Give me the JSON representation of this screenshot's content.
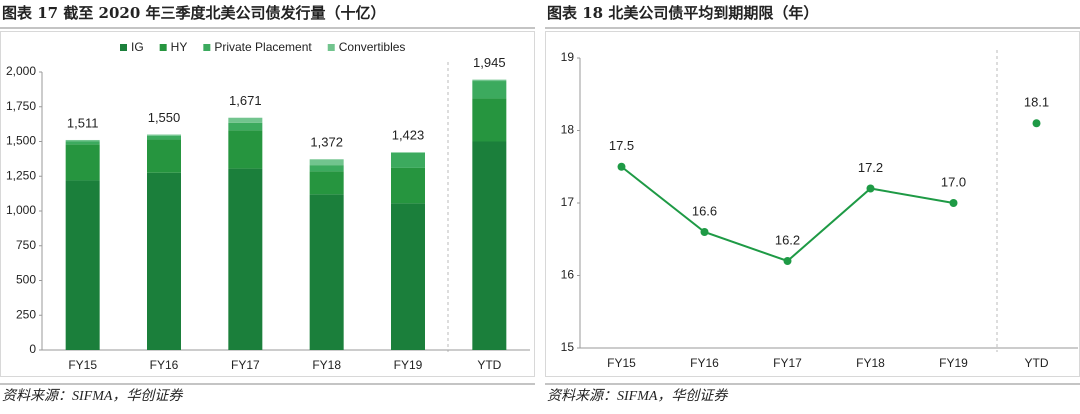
{
  "chart_data": [
    {
      "type": "bar",
      "stacked": true,
      "title": "图表 17   截至 2020 年三季度北美公司债发行量（十亿）",
      "source": "资料来源：SIFMA，华创证券",
      "categories": [
        "FY15",
        "FY16",
        "FY17",
        "FY18",
        "FY19",
        "YTD"
      ],
      "series": [
        {
          "name": "IG",
          "color": "#1b7f3b",
          "values": [
            1220,
            1275,
            1305,
            1120,
            1055,
            1500
          ]
        },
        {
          "name": "HY",
          "color": "#26953f",
          "values": [
            260,
            240,
            275,
            165,
            255,
            310
          ]
        },
        {
          "name": "Private Placement",
          "color": "#3caa5e",
          "values": [
            20,
            25,
            55,
            45,
            108,
            125
          ]
        },
        {
          "name": "Convertibles",
          "color": "#72c48e",
          "values": [
            11,
            10,
            36,
            42,
            5,
            10
          ]
        }
      ],
      "totals": [
        1511,
        1550,
        1671,
        1372,
        1423,
        1945
      ],
      "total_labels": [
        "1,511",
        "1,550",
        "1,671",
        "1,372",
        "1,423",
        "1,945"
      ],
      "ylim": [
        0,
        2000
      ],
      "yticks": [
        0,
        250,
        500,
        750,
        {
          "value": 1000,
          "label": "1,000"
        },
        {
          "value": 1250,
          "label": "1,250"
        },
        {
          "value": 1500,
          "label": "1,500"
        },
        {
          "value": 1750,
          "label": "1,750"
        },
        {
          "value": 2000,
          "label": "2,000"
        }
      ],
      "legend": "top"
    },
    {
      "type": "line",
      "title": "图表 18   北美公司债平均到期期限（年）",
      "source": "资料来源：SIFMA，华创证券",
      "categories": [
        "FY15",
        "FY16",
        "FY17",
        "FY18",
        "FY19",
        "YTD"
      ],
      "series": [
        {
          "color": "#1e9a45",
          "values": [
            17.5,
            16.6,
            16.2,
            17.2,
            17.0,
            null
          ],
          "value_labels": [
            "17.5",
            "16.6",
            "16.2",
            "17.2",
            "17.0",
            null
          ]
        },
        {
          "color": "#1e9a45",
          "values": [
            null,
            null,
            null,
            null,
            null,
            18.1
          ],
          "value_labels": [
            null,
            null,
            null,
            null,
            null,
            "18.1"
          ]
        }
      ],
      "ylim": [
        15,
        19
      ],
      "yticks": [
        15,
        16,
        17,
        18,
        19
      ]
    }
  ]
}
